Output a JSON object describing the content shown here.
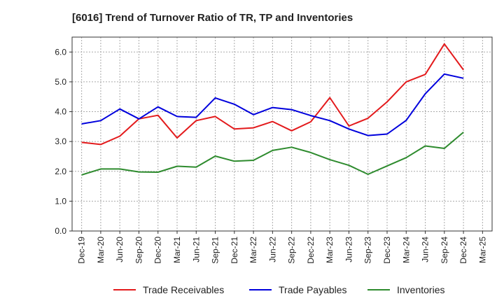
{
  "chart_data": {
    "type": "line",
    "title": "[6016]  Trend of Turnover Ratio of TR, TP and Inventories",
    "xlabel": "",
    "ylabel": "",
    "ylim": [
      0,
      6.5
    ],
    "yticks": [
      "0.0",
      "1.0",
      "2.0",
      "3.0",
      "4.0",
      "5.0",
      "6.0"
    ],
    "grid": true,
    "legend_position": "bottom",
    "x": [
      "Dec-19",
      "Mar-20",
      "Jun-20",
      "Sep-20",
      "Dec-20",
      "Mar-21",
      "Jun-21",
      "Sep-21",
      "Dec-21",
      "Mar-22",
      "Jun-22",
      "Sep-22",
      "Dec-22",
      "Mar-23",
      "Jun-23",
      "Sep-23",
      "Dec-23",
      "Mar-24",
      "Jun-24",
      "Sep-24",
      "Dec-24"
    ],
    "xticks": [
      "Dec-19",
      "Mar-20",
      "Jun-20",
      "Sep-20",
      "Dec-20",
      "Mar-21",
      "Jun-21",
      "Sep-21",
      "Dec-21",
      "Mar-22",
      "Jun-22",
      "Sep-22",
      "Dec-22",
      "Mar-23",
      "Jun-23",
      "Sep-23",
      "Dec-23",
      "Mar-24",
      "Jun-24",
      "Sep-24",
      "Dec-24",
      "Mar-25"
    ],
    "series": [
      {
        "name": "Trade Receivables",
        "color": "#e31a1c",
        "values": [
          2.97,
          2.9,
          3.18,
          3.76,
          3.88,
          3.12,
          3.7,
          3.84,
          3.42,
          3.46,
          3.67,
          3.36,
          3.66,
          4.47,
          3.52,
          3.78,
          4.33,
          5.0,
          5.25,
          6.27,
          5.4
        ]
      },
      {
        "name": "Trade Payables",
        "color": "#0000dd",
        "values": [
          3.59,
          3.7,
          4.09,
          3.76,
          4.16,
          3.84,
          3.81,
          4.46,
          4.25,
          3.9,
          4.14,
          4.07,
          3.87,
          3.7,
          3.42,
          3.2,
          3.25,
          3.71,
          4.6,
          5.26,
          5.12
        ]
      },
      {
        "name": "Inventories",
        "color": "#2e8b2e",
        "values": [
          1.88,
          2.08,
          2.08,
          1.98,
          1.97,
          2.17,
          2.14,
          2.51,
          2.34,
          2.37,
          2.7,
          2.81,
          2.63,
          2.39,
          2.2,
          1.9,
          2.18,
          2.46,
          2.85,
          2.77,
          3.31
        ]
      }
    ]
  }
}
